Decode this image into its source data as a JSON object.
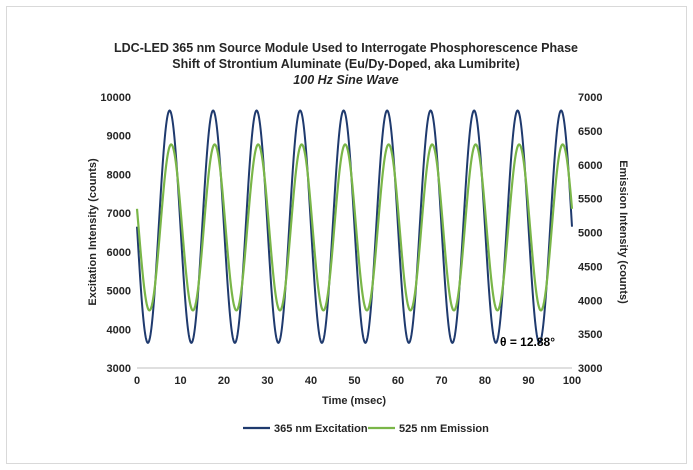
{
  "chart_data": {
    "type": "line",
    "title_lines": [
      "LDC-LED 365 nm Source Module Used to Interrogate Phosphorescence Phase",
      "Shift of Strontium Aluminate (Eu/Dy-Doped, aka Lumibrite)"
    ],
    "subtitle": "100 Hz Sine Wave",
    "xlabel": "Time (msec)",
    "ylabel": "Excitation Intensity (counts)",
    "y2label": "Emission Intensity (counts)",
    "xlim": [
      0,
      100
    ],
    "ylim": [
      3000,
      10000
    ],
    "y2lim": [
      3000,
      7000
    ],
    "x_ticks": [
      0,
      10,
      20,
      30,
      40,
      50,
      60,
      70,
      80,
      90,
      100
    ],
    "y_ticks": [
      3000,
      4000,
      5000,
      6000,
      7000,
      8000,
      9000,
      10000
    ],
    "y2_ticks": [
      3000,
      3500,
      4000,
      4500,
      5000,
      5500,
      6000,
      6500,
      7000
    ],
    "grid": false,
    "legend_position": "bottom",
    "annotation": "θ = 12.88°",
    "series": [
      {
        "name": "365 nm Excitation",
        "axis": "left",
        "color": "#1f3a6e",
        "waveform": "sine",
        "frequency_hz": 100,
        "min": 3650,
        "max": 9650,
        "first_peak_ms": 7.5
      },
      {
        "name": "525 nm Emission",
        "axis": "right",
        "color": "#7ab648",
        "waveform": "sine",
        "frequency_hz": 100,
        "min": 3850,
        "max": 6300,
        "first_peak_ms": 7.86
      }
    ]
  }
}
